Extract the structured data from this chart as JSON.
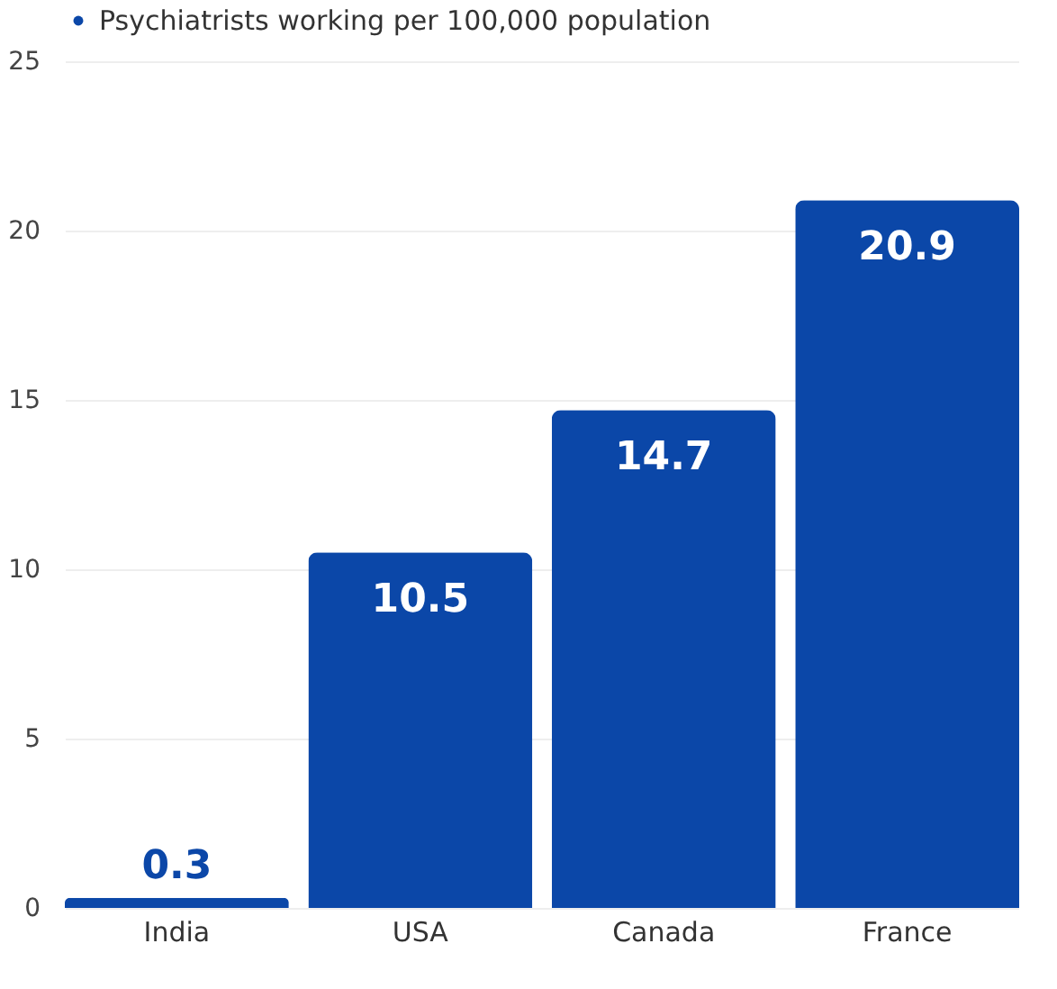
{
  "chart_data": {
    "type": "bar",
    "categories": [
      "India",
      "USA",
      "Canada",
      "France"
    ],
    "series": [
      {
        "name": "Psychiatrists working per 100,000 population",
        "color": "#0b47a8",
        "values": [
          0.3,
          10.5,
          14.7,
          20.9
        ]
      }
    ],
    "ylim": [
      0,
      25
    ],
    "yticks": [
      0,
      5,
      10,
      15,
      20,
      25
    ],
    "grid": "y",
    "legend": "top left",
    "data_labels": true
  }
}
